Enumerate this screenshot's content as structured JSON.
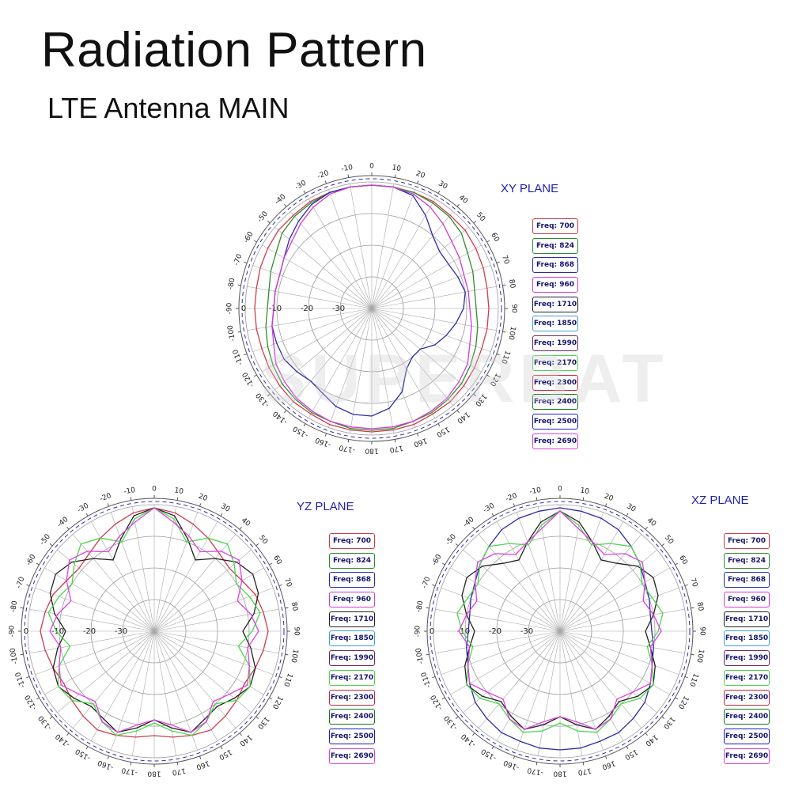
{
  "header": {
    "title": "Radiation Pattern",
    "subtitle": "LTE Antenna MAIN"
  },
  "watermark": "SUPERBAT",
  "legend": [
    {
      "label": "Freq: 700",
      "color": "#d03b4d"
    },
    {
      "label": "Freq: 824",
      "color": "#2e8b2e"
    },
    {
      "label": "Freq: 868",
      "color": "#2b2ba8"
    },
    {
      "label": "Freq: 960",
      "color": "#d13bd1"
    },
    {
      "label": "Freq: 1710",
      "color": "#222222"
    },
    {
      "label": "Freq: 1850",
      "color": "#3aa0d8"
    },
    {
      "label": "Freq: 1990",
      "color": "#6a2a5a"
    },
    {
      "label": "Freq: 2170",
      "color": "#4bd64b"
    },
    {
      "label": "Freq: 2300",
      "color": "#c8283a"
    },
    {
      "label": "Freq: 2400",
      "color": "#157a15"
    },
    {
      "label": "Freq: 2500",
      "color": "#1c1ccc"
    },
    {
      "label": "Freq: 2690",
      "color": "#e040e0"
    }
  ],
  "chart_data": [
    {
      "type": "polar",
      "title": "XY PLANE",
      "radial_ticks": [
        -30,
        -20,
        -10,
        0
      ],
      "angle_labels": [
        "0",
        "10",
        "20",
        "30",
        "40",
        "50",
        "60",
        "70",
        "80",
        "90",
        "100",
        "110",
        "120",
        "130",
        "140",
        "150",
        "160",
        "170",
        "180",
        "-170",
        "-160",
        "-150",
        "-140",
        "-130",
        "-120",
        "-110",
        "-100",
        "-90",
        "-80",
        "-70",
        "-60",
        "-50",
        "-40",
        "-30",
        "-20",
        "-10"
      ],
      "series": [
        {
          "name": "Freq: 700",
          "values": [
            -1,
            -1,
            -1,
            -1,
            -1.5,
            -1.5,
            -2,
            -2.5,
            -3,
            -3,
            -3,
            -3,
            -2.5,
            -2,
            -1.5,
            -1.5,
            -1,
            -1,
            -1,
            -1,
            -1,
            -1.5,
            -1.5,
            -2,
            -2.5,
            -3,
            -3,
            -3,
            -3,
            -2.5,
            -2,
            -1.5,
            -1.5,
            -1,
            -1,
            -1
          ]
        },
        {
          "name": "Freq: 824",
          "values": [
            -1,
            -1,
            -1,
            -1.5,
            -2,
            -3,
            -5,
            -6,
            -7,
            -7,
            -6,
            -5,
            -4,
            -3,
            -2.5,
            -2,
            -2,
            -1.5,
            -1.5,
            -1.5,
            -2,
            -2,
            -2.5,
            -3,
            -4,
            -5,
            -6,
            -7,
            -7,
            -6,
            -5,
            -3,
            -2,
            -1.5,
            -1,
            -1
          ]
        },
        {
          "name": "Freq: 868",
          "values": [
            -1,
            -1,
            -2,
            -6,
            -10,
            -12,
            -12,
            -11,
            -10,
            -11,
            -13,
            -15,
            -17,
            -20,
            -20,
            -18,
            -12,
            -8,
            -6,
            -6,
            -7,
            -9,
            -10,
            -9,
            -8,
            -8,
            -8,
            -9,
            -9,
            -9,
            -8,
            -6,
            -4,
            -2,
            -1,
            -1
          ]
        },
        {
          "name": "Freq: 960",
          "values": [
            -1,
            -1,
            -1.5,
            -3,
            -5,
            -7,
            -8,
            -9,
            -9,
            -9,
            -8,
            -7,
            -5,
            -4,
            -3,
            -2.5,
            -2,
            -2,
            -2,
            -2,
            -2,
            -2.5,
            -3,
            -4,
            -5,
            -7,
            -8,
            -9,
            -9,
            -9,
            -8,
            -7,
            -5,
            -3,
            -1.5,
            -1
          ]
        }
      ]
    },
    {
      "type": "polar",
      "title": "YZ PLANE",
      "radial_ticks": [
        -30,
        -20,
        -10,
        0
      ],
      "angle_labels": [
        "0",
        "10",
        "20",
        "30",
        "40",
        "50",
        "60",
        "70",
        "80",
        "90",
        "100",
        "110",
        "120",
        "130",
        "140",
        "150",
        "160",
        "170",
        "180",
        "-170",
        "-160",
        "-150",
        "-140",
        "-130",
        "-120",
        "-110",
        "-100",
        "-90",
        "-80",
        "-70",
        "-60",
        "-50",
        "-40",
        "-30",
        "-20",
        "-10"
      ],
      "series": [
        {
          "name": "Freq: 700",
          "values": [
            -1,
            -2,
            -4,
            -6,
            -8,
            -9,
            -8,
            -6,
            -5,
            -4,
            -5,
            -6,
            -7,
            -6,
            -5,
            -4,
            -5,
            -6,
            -7,
            -6,
            -5,
            -4,
            -5,
            -6,
            -7,
            -6,
            -5,
            -4,
            -5,
            -6,
            -8,
            -9,
            -8,
            -6,
            -4,
            -2
          ]
        },
        {
          "name": "Freq: 1710",
          "values": [
            -1,
            -3,
            -9,
            -14,
            -10,
            -6,
            -4,
            -5,
            -8,
            -12,
            -9,
            -6,
            -5,
            -7,
            -9,
            -8,
            -6,
            -9,
            -12,
            -9,
            -6,
            -8,
            -9,
            -7,
            -5,
            -6,
            -9,
            -12,
            -8,
            -5,
            -4,
            -6,
            -10,
            -14,
            -9,
            -3
          ]
        },
        {
          "name": "Freq: 2170",
          "values": [
            -1,
            -4,
            -10,
            -6,
            -4,
            -7,
            -10,
            -8,
            -6,
            -9,
            -13,
            -8,
            -5,
            -6,
            -10,
            -7,
            -5,
            -8,
            -11,
            -8,
            -5,
            -7,
            -10,
            -6,
            -5,
            -8,
            -13,
            -9,
            -6,
            -8,
            -10,
            -7,
            -4,
            -6,
            -10,
            -4
          ]
        },
        {
          "name": "Freq: 2690",
          "values": [
            -1,
            -5,
            -8,
            -11,
            -7,
            -5,
            -8,
            -12,
            -9,
            -7,
            -10,
            -8,
            -6,
            -9,
            -11,
            -7,
            -6,
            -10,
            -12,
            -10,
            -6,
            -7,
            -11,
            -9,
            -6,
            -8,
            -10,
            -7,
            -9,
            -12,
            -8,
            -5,
            -7,
            -11,
            -8,
            -5
          ]
        }
      ]
    },
    {
      "type": "polar",
      "title": "XZ PLANE",
      "radial_ticks": [
        -30,
        -20,
        -10,
        0
      ],
      "angle_labels": [
        "0",
        "10",
        "20",
        "30",
        "40",
        "50",
        "60",
        "70",
        "80",
        "90",
        "100",
        "110",
        "120",
        "130",
        "140",
        "150",
        "160",
        "170",
        "180",
        "-170",
        "-160",
        "-150",
        "-140",
        "-130",
        "-120",
        "-110",
        "-100",
        "-90",
        "-80",
        "-70",
        "-60",
        "-50",
        "-40",
        "-30",
        "-20",
        "-10"
      ],
      "series": [
        {
          "name": "Freq: 868",
          "values": [
            -1,
            -1.5,
            -2,
            -3,
            -5,
            -7,
            -9,
            -10,
            -11,
            -11,
            -10,
            -9,
            -7,
            -5,
            -4,
            -3,
            -3,
            -2.5,
            -2.5,
            -2.5,
            -3,
            -3,
            -4,
            -5,
            -7,
            -9,
            -10,
            -11,
            -11,
            -10,
            -9,
            -7,
            -5,
            -3,
            -2,
            -1.5
          ]
        },
        {
          "name": "Freq: 1710",
          "values": [
            -2,
            -5,
            -10,
            -14,
            -12,
            -8,
            -6,
            -7,
            -10,
            -13,
            -11,
            -8,
            -6,
            -8,
            -11,
            -9,
            -7,
            -10,
            -13,
            -10,
            -7,
            -9,
            -11,
            -8,
            -6,
            -8,
            -11,
            -13,
            -10,
            -7,
            -6,
            -8,
            -12,
            -14,
            -10,
            -5
          ]
        },
        {
          "name": "Freq: 2170",
          "values": [
            -2,
            -6,
            -11,
            -8,
            -5,
            -7,
            -10,
            -9,
            -7,
            -9,
            -12,
            -9,
            -6,
            -7,
            -10,
            -8,
            -6,
            -8,
            -11,
            -8,
            -6,
            -8,
            -10,
            -7,
            -6,
            -9,
            -12,
            -9,
            -7,
            -9,
            -10,
            -7,
            -5,
            -8,
            -11,
            -6
          ]
        },
        {
          "name": "Freq: 2690",
          "values": [
            -2,
            -7,
            -10,
            -12,
            -8,
            -6,
            -9,
            -12,
            -10,
            -8,
            -11,
            -9,
            -7,
            -10,
            -12,
            -8,
            -7,
            -11,
            -13,
            -11,
            -7,
            -8,
            -12,
            -10,
            -7,
            -9,
            -11,
            -8,
            -10,
            -12,
            -9,
            -6,
            -8,
            -12,
            -10,
            -7
          ]
        }
      ]
    }
  ]
}
